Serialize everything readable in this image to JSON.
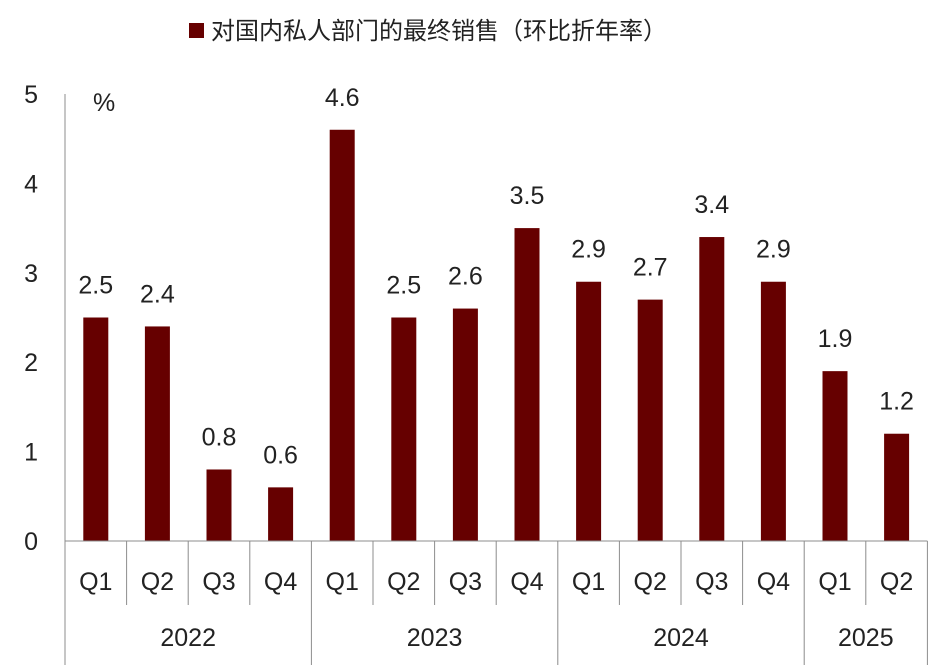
{
  "chart_data": {
    "type": "bar",
    "legend": {
      "label": "对国内私人部门的最终销售（环比折年率）",
      "position": "top"
    },
    "unit_label": "%",
    "ylim": [
      0,
      5
    ],
    "yticks": [
      "0",
      "1",
      "2",
      "3",
      "4",
      "5"
    ],
    "bar_color": "#660000",
    "groups": [
      {
        "label": "2022",
        "quarters": [
          "Q1",
          "Q2",
          "Q3",
          "Q4"
        ],
        "values": [
          2.5,
          2.4,
          0.8,
          0.6
        ]
      },
      {
        "label": "2023",
        "quarters": [
          "Q1",
          "Q2",
          "Q3",
          "Q4"
        ],
        "values": [
          4.6,
          2.5,
          2.6,
          3.5
        ]
      },
      {
        "label": "2024",
        "quarters": [
          "Q1",
          "Q2",
          "Q3",
          "Q4"
        ],
        "values": [
          2.9,
          2.7,
          3.4,
          2.9
        ]
      },
      {
        "label": "2025",
        "quarters": [
          "Q1",
          "Q2"
        ],
        "values": [
          1.9,
          1.2
        ]
      }
    ],
    "grid": false
  }
}
